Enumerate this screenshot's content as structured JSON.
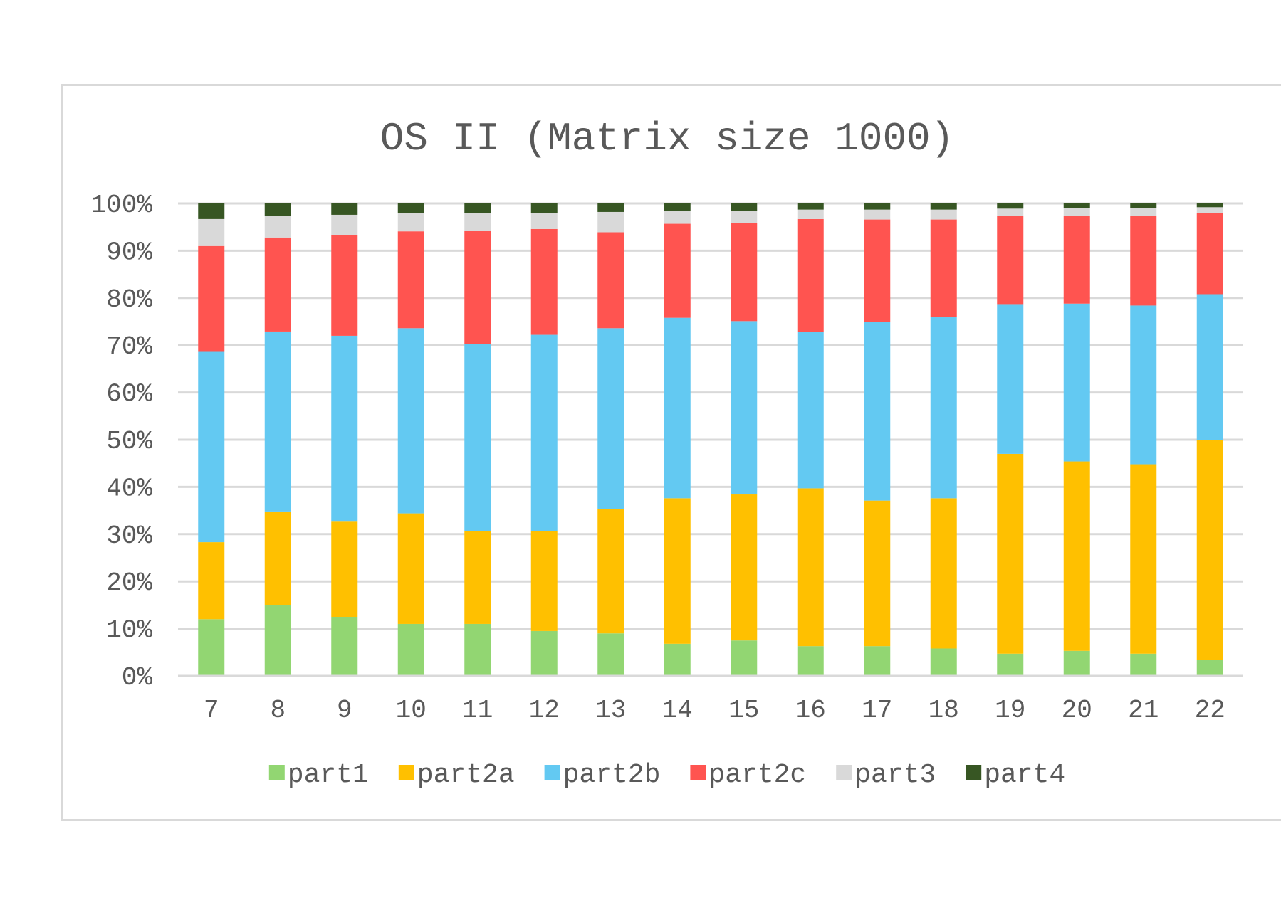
{
  "chart_data": {
    "type": "bar",
    "stacked": "percent",
    "title": "OS II (Matrix size 1000)",
    "xlabel": "",
    "ylabel": "",
    "ylim": [
      0,
      100
    ],
    "y_ticks": [
      "0%",
      "10%",
      "20%",
      "30%",
      "40%",
      "50%",
      "60%",
      "70%",
      "80%",
      "90%",
      "100%"
    ],
    "grid": true,
    "legend_position": "bottom",
    "categories": [
      "7",
      "8",
      "9",
      "10",
      "11",
      "12",
      "13",
      "14",
      "15",
      "16",
      "17",
      "18",
      "19",
      "20",
      "21",
      "22"
    ],
    "series": [
      {
        "name": "part1",
        "color": "#92d672",
        "values": [
          12,
          15,
          12.5,
          11,
          11,
          9.5,
          9,
          6.8,
          7.5,
          6.3,
          6.3,
          5.8,
          4.7,
          5.3,
          4.7,
          3.4
        ]
      },
      {
        "name": "part2a",
        "color": "#ffc000",
        "values": [
          16.3,
          19.8,
          20.3,
          23.4,
          19.7,
          21.1,
          26.3,
          30.8,
          30.9,
          33.4,
          30.8,
          31.8,
          42.3,
          40.1,
          40.1,
          46.6
        ]
      },
      {
        "name": "part2b",
        "color": "#63c9f2",
        "values": [
          40.3,
          38.1,
          39.2,
          39.2,
          39.6,
          41.6,
          38.3,
          38.2,
          36.7,
          33.1,
          37.9,
          38.3,
          31.7,
          33.4,
          33.6,
          30.8
        ]
      },
      {
        "name": "part2c",
        "color": "#ff5450",
        "values": [
          22.4,
          19.9,
          21.3,
          20.5,
          23.9,
          22.4,
          20.3,
          19.9,
          20.8,
          23.9,
          21.6,
          20.7,
          18.6,
          18.6,
          19.0,
          17.1
        ]
      },
      {
        "name": "part3",
        "color": "#d9d9d9",
        "values": [
          5.7,
          4.6,
          4.3,
          3.8,
          3.7,
          3.3,
          4.3,
          2.7,
          2.5,
          2.0,
          2.1,
          2.1,
          1.6,
          1.6,
          1.6,
          1.3
        ]
      },
      {
        "name": "part4",
        "color": "#375623",
        "values": [
          3.3,
          2.6,
          2.4,
          2.1,
          2.1,
          2.1,
          1.8,
          1.6,
          1.6,
          1.3,
          1.3,
          1.3,
          1.1,
          1.0,
          1.0,
          0.8
        ]
      }
    ]
  }
}
